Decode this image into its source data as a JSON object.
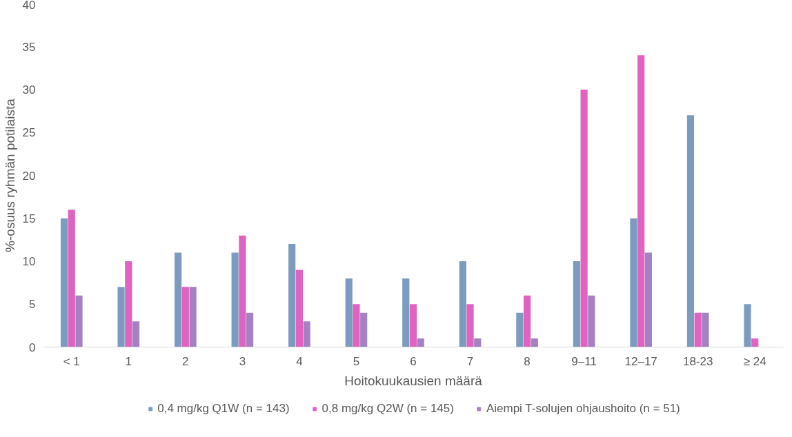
{
  "chart_data": {
    "type": "bar",
    "xlabel": "Hoitokuukausien määrä",
    "ylabel": "%-osuus ryhmän potilaista",
    "categories": [
      "< 1",
      "1",
      "2",
      "3",
      "4",
      "5",
      "6",
      "7",
      "8",
      "9–11",
      "12–17",
      "18-23",
      "≥ 24"
    ],
    "series": [
      {
        "name": "0,4 mg/kg Q1W (n = 143)",
        "color": "#7b9cbf",
        "values": [
          15,
          7,
          11,
          11,
          12,
          8,
          8,
          10,
          4,
          10,
          15,
          27,
          5
        ]
      },
      {
        "name": "0,8 mg/kg Q2W (n = 145)",
        "color": "#e063c2",
        "values": [
          16,
          10,
          7,
          13,
          9,
          5,
          5,
          5,
          6,
          30,
          34,
          4,
          1
        ]
      },
      {
        "name": "Aiempi T-solujen ohjaushoito (n = 51)",
        "color": "#a381c2",
        "values": [
          6,
          3,
          7,
          4,
          3,
          4,
          1,
          1,
          1,
          6,
          11,
          4,
          null
        ]
      }
    ],
    "ylim": [
      0,
      40
    ],
    "yticks": [
      0,
      5,
      10,
      15,
      20,
      25,
      30,
      35,
      40
    ],
    "grid": false,
    "legend": "bottom"
  }
}
